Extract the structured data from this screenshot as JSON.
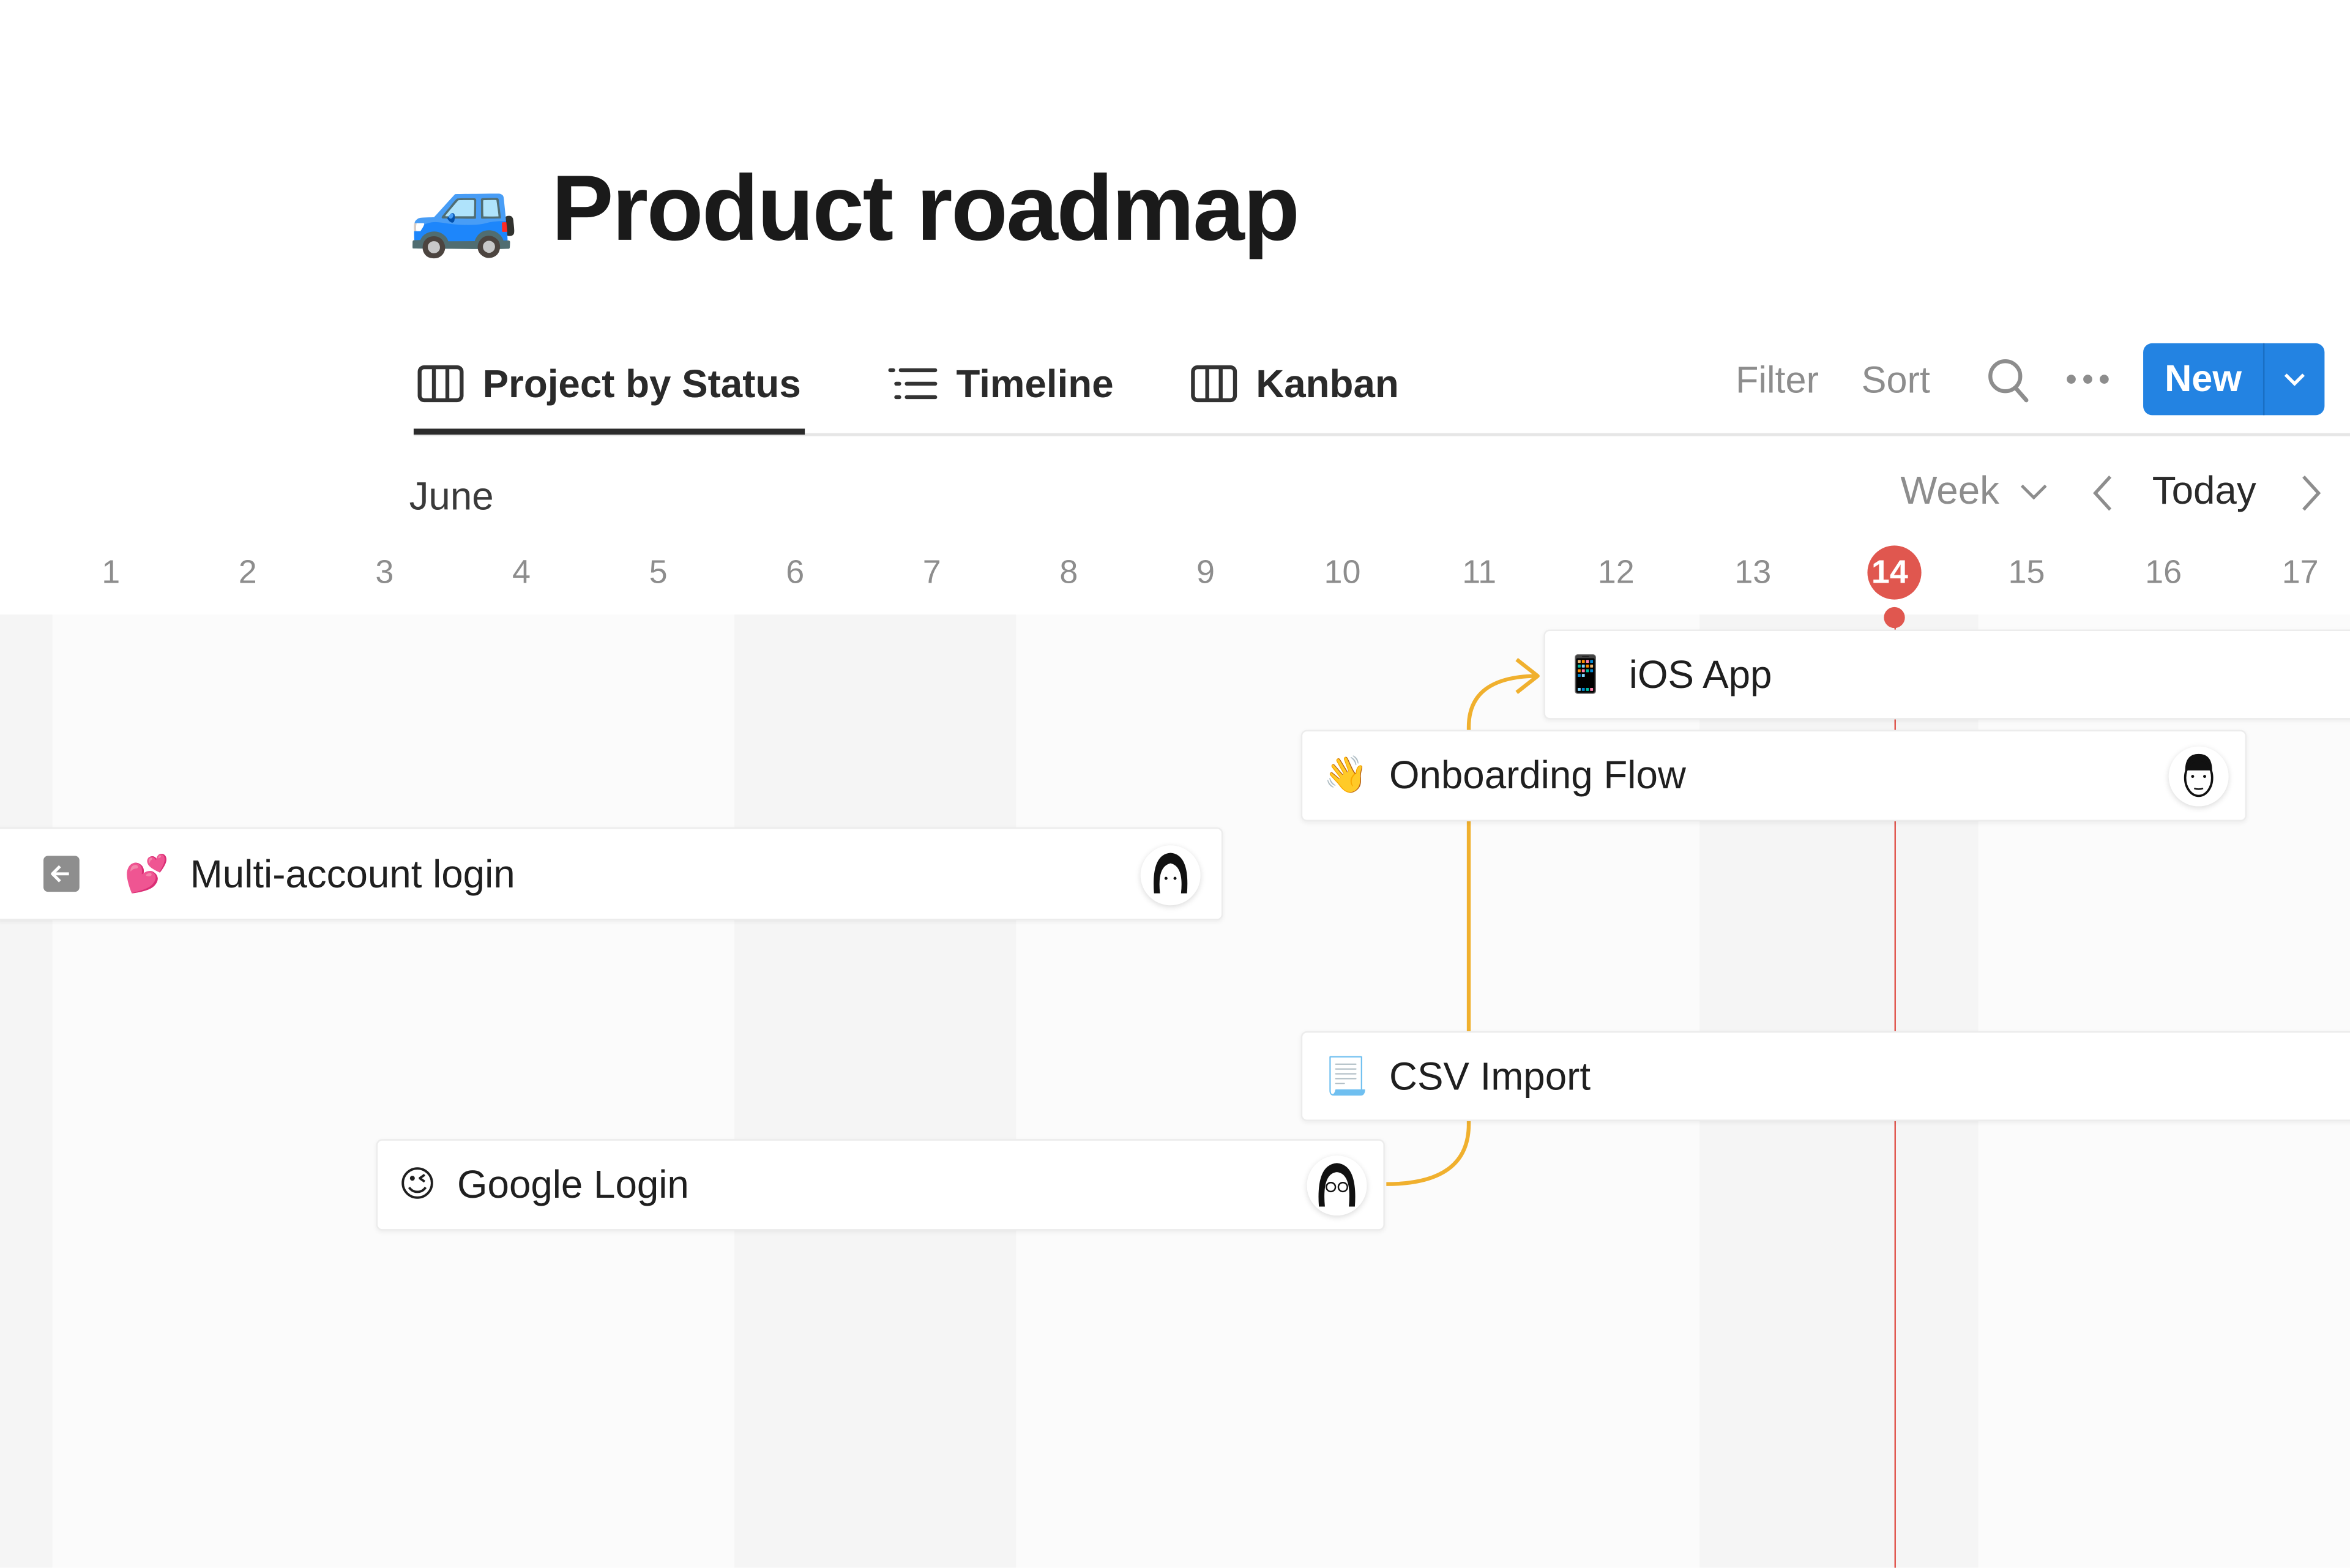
{
  "page": {
    "title": "Product roadmap",
    "icon": "blue-car-emoji",
    "icon_glyph": "🚙"
  },
  "tabs": [
    {
      "label": "Project by Status",
      "icon": "board-icon",
      "active": true
    },
    {
      "label": "Timeline",
      "icon": "timeline-icon",
      "active": false
    },
    {
      "label": "Kanban",
      "icon": "board-icon",
      "active": false
    }
  ],
  "toolbar": {
    "filter": "Filter",
    "sort": "Sort",
    "new": "New"
  },
  "timeline": {
    "month": "June",
    "scale": "Week",
    "today_label": "Today",
    "days": [
      "1",
      "2",
      "3",
      "4",
      "5",
      "6",
      "7",
      "8",
      "9",
      "10",
      "11",
      "12",
      "13",
      "14",
      "15",
      "16",
      "17"
    ],
    "today": "14"
  },
  "items": [
    {
      "name": "iOS App",
      "emoji": "📱"
    },
    {
      "name": "Onboarding Flow",
      "emoji": "👋"
    },
    {
      "name": "Multi-account login",
      "emoji": "💕"
    },
    {
      "name": "CSV Import",
      "emoji": "📃"
    },
    {
      "name": "Google Login",
      "emoji": "😉"
    }
  ],
  "colors": {
    "accent": "#2383e2",
    "today": "#e0574f",
    "dependency": "#f0b02e"
  }
}
